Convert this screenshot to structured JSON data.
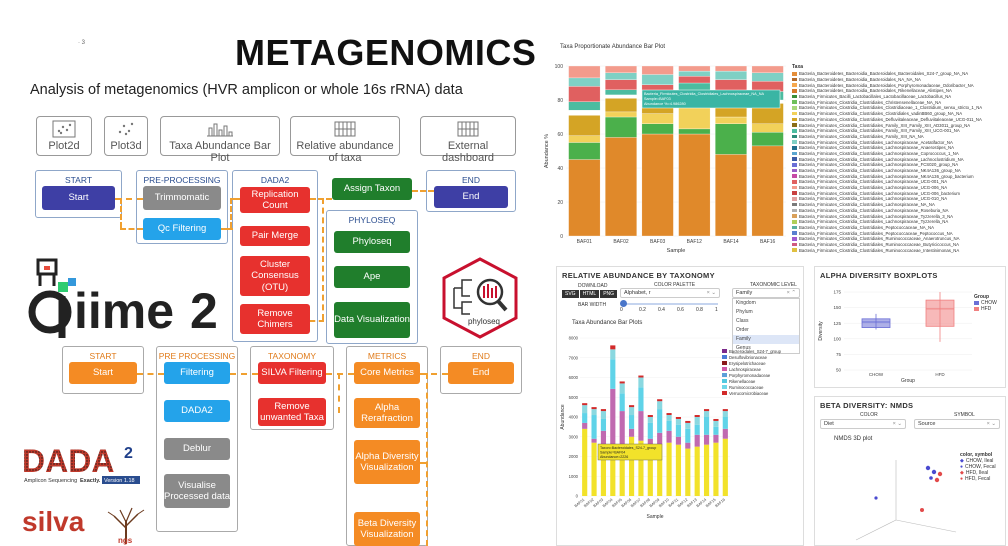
{
  "header": {
    "title": "METAGENOMICS",
    "subtitle": "Analysis of metagenomics (HVR amplicon or whole 16s rRNA) data",
    "version_mark": "· 3"
  },
  "features": [
    {
      "label": "Plot2d",
      "icon": "scatter-plot-icon"
    },
    {
      "label": "Plot3d",
      "icon": "scatter-3d-icon"
    },
    {
      "label": "Taxa Abundance Bar Plot",
      "icon": "bar-chart-icon"
    },
    {
      "label": "Relative abundance of taxa",
      "icon": "stacked-bar-icon"
    },
    {
      "label": "External dashboard",
      "icon": "dashboard-icon"
    }
  ],
  "qiime_pipeline": {
    "start": {
      "header": "START",
      "node": "Start"
    },
    "preprocessing": {
      "header": "PRE-PROCESSING",
      "nodes": [
        "Trimmomatic",
        "Qc Filtering"
      ]
    },
    "dada2": {
      "header": "DADA2",
      "nodes": [
        "Replication Count",
        "Pair Merge",
        "Cluster Consensus (OTU)",
        "Remove Chimers"
      ]
    },
    "assign": {
      "node": "Assign Taxon"
    },
    "phyloseq": {
      "header": "PHYLOSEQ",
      "nodes": [
        "Phyloseq",
        "Ape",
        "Data Visualization"
      ]
    },
    "end": {
      "header": "END",
      "node": "End"
    }
  },
  "dada2_pipeline": {
    "start": {
      "header": "START",
      "node": "Start"
    },
    "preprocessing": {
      "header": "PRE PROCESSING",
      "nodes": [
        "Filtering",
        "DADA2",
        "Deblur",
        "Visualise Processed data"
      ]
    },
    "taxonomy": {
      "header": "TAXONOMY",
      "nodes": [
        "SILVA Filtering",
        "Remove unwanted Taxa"
      ]
    },
    "metrics": {
      "header": "METRICS",
      "nodes": [
        "Core Metrics",
        "Alpha Rerafraction",
        "Alpha Diversity Visualization",
        "Beta Diversity Visualization"
      ]
    },
    "end": {
      "header": "END",
      "node": "End"
    }
  },
  "logos": {
    "qiime": "qiime2",
    "phyloseq": "phyloseq",
    "dada2_word": "DADA",
    "dada2_sup": "2",
    "dada2_tagline": "Amplicon Sequencing",
    "dada2_exactly": "Exactly.",
    "dada2_version": "Version 1.18",
    "silva": "silva",
    "silva_suffix": "ngs"
  },
  "taxa_panel": {
    "title": "Taxa Proportionate Abundance Bar Plot",
    "ylabel": "Abundance %",
    "xlabel": "Sample",
    "legend_title": "Taxa",
    "tooltip": [
      "Bacteria_Firmicutes_Clostridia_Clostridiales_Lachnospiraceae_NA_NA",
      "Sample=BAF03",
      "Abundance %=4.986280"
    ],
    "legend": [
      "Bacteria_Bacteroidetes_Bacteroidia_Bacteroidales_Bacteroidales_S24-7_group_NA_NA",
      "Bacteria_Bacteroidetes_Bacteroidia_Bacteroidales_NA_NA_NA",
      "Bacteria_Bacteroidetes_Bacteroidia_Bacteroidales_Porphyromonadaceae_Odoribacter_NA",
      "Bacteria_Bacteroidetes_Bacteroidia_Bacteroidales_Rikenellaceae_Alistipes_NA",
      "Bacteria_Firmicutes_Bacilli_Lactobacillales_Lactobacillaceae_Lactobacillus_NA",
      "Bacteria_Firmicutes_Clostridia_Clostridiales_Christensenellaceae_NA_NA",
      "Bacteria_Firmicutes_Clostridia_Clostridiales_Clostridiaceae_1_Clostridium_sensu_stricto_1_NA",
      "Bacteria_Firmicutes_Clostridia_Clostridiales_Clostridiales_vadinBB60_group_NA_NA",
      "Bacteria_Firmicutes_Clostridia_Clostridiales_Defluviitaleaceae_Defluviitaleaceae_UCG-011_NA",
      "Bacteria_Firmicutes_Clostridia_Clostridiales_Family_XIII_Family_XIII_AD3011_group_NA",
      "Bacteria_Firmicutes_Clostridia_Clostridiales_Family_XIII_Family_XIII_UCG-001_NA",
      "Bacteria_Firmicutes_Clostridia_Clostridiales_Family_XIII_NA_NA",
      "Bacteria_Firmicutes_Clostridia_Clostridiales_Lachnospiraceae_Acetatifactor_NA",
      "Bacteria_Firmicutes_Clostridia_Clostridiales_Lachnospiraceae_Anaerostipes_NA",
      "Bacteria_Firmicutes_Clostridia_Clostridiales_Lachnospiraceae_Coprococcus_1_NA",
      "Bacteria_Firmicutes_Clostridia_Clostridiales_Lachnospiraceae_Lachnoclostridium_NA",
      "Bacteria_Firmicutes_Clostridia_Clostridiales_Lachnospiraceae_FCS020_group_NA",
      "Bacteria_Firmicutes_Clostridia_Clostridiales_Lachnospiraceae_NK4A136_group_NA",
      "Bacteria_Firmicutes_Clostridia_Clostridiales_Lachnospiraceae_NK4A136_group_bacterium",
      "Bacteria_Firmicutes_Clostridia_Clostridiales_Lachnospiraceae_UCG-001_NA",
      "Bacteria_Firmicutes_Clostridia_Clostridiales_Lachnospiraceae_UCG-006_NA",
      "Bacteria_Firmicutes_Clostridia_Clostridiales_Lachnospiraceae_UCG-006_bacterium",
      "Bacteria_Firmicutes_Clostridia_Clostridiales_Lachnospiraceae_UCG-010_NA",
      "Bacteria_Firmicutes_Clostridia_Clostridiales_Lachnospiraceae_NA_NA",
      "Bacteria_Firmicutes_Clostridia_Clostridiales_Lachnospiraceae_Roseburia_NA",
      "Bacteria_Firmicutes_Clostridia_Clostridiales_Lachnospiraceae_Tyzzerella_3_NA",
      "Bacteria_Firmicutes_Clostridia_Clostridiales_Lachnospiraceae_Tyzzerella_NA",
      "Bacteria_Firmicutes_Clostridia_Clostridiales_Peptococcaceae_NA_NA",
      "Bacteria_Firmicutes_Clostridia_Clostridiales_Peptococcaceae_Peptococcus_NA",
      "Bacteria_Firmicutes_Clostridia_Clostridiales_Ruminococcaceae_Anaerotruncus_NA",
      "Bacteria_Firmicutes_Clostridia_Clostridiales_Ruminococcaceae_Butyricicoccus_NA",
      "Bacteria_Firmicutes_Clostridia_Clostridiales_Ruminococcaceae_Intestinimonas_NA"
    ]
  },
  "relative_panel": {
    "title": "RELATIVE ABUNDANCE BY TAXONOMY",
    "download_label": "DOWNLOAD",
    "download_buttons": [
      "SVG",
      "HTML",
      "PNG"
    ],
    "color_palette_label": "COLOR PALETTE",
    "color_palette_value": "Alphabet, r",
    "bar_width_label": "BAR WIDTH",
    "slider_ticks": [
      "0",
      "0.2",
      "0.4",
      "0.6",
      "0.8",
      "1"
    ],
    "taxonomy_label": "TAXONOMIC LEVEL",
    "taxonomy_value": "Family",
    "taxonomy_options": [
      "Kingdom",
      "Phylum",
      "Class",
      "Order",
      "Family",
      "Genus"
    ],
    "taxonomy_selected": "Family",
    "plot_title": "Taxa Abundance Bar Plots",
    "ylabel": "Abundance",
    "xlabel": "Sample",
    "tooltip": [
      "Taxon=Bacteroidales_S24-7_group",
      "Sample=BAF04",
      "Abundance=2226"
    ],
    "legend": [
      {
        "name": "Bacteroidales_S24-7_group",
        "color": "#7b2a8b"
      },
      {
        "name": "Desulfovibrionaceae",
        "color": "#4b7bd6"
      },
      {
        "name": "Erysipelotrichaceae",
        "color": "#8a1a1a"
      },
      {
        "name": "Lachnospiraceae",
        "color": "#d05aa8"
      },
      {
        "name": "Porphyromonadaceae",
        "color": "#5c9fd9"
      },
      {
        "name": "Rikenellaceae",
        "color": "#52c9e0"
      },
      {
        "name": "Ruminococcaceae",
        "color": "#6fd7e8"
      },
      {
        "name": "Verrucomicrobiaceae",
        "color": "#d22a2a"
      }
    ],
    "samples": [
      "BAF01",
      "BAF02",
      "BAF03",
      "BAF04",
      "BAF05",
      "BAF06",
      "BAF07",
      "BAF08",
      "BAF09",
      "BAF10",
      "BAF11",
      "BAF12",
      "BAF13",
      "BAF14",
      "BAF15",
      "BAF16"
    ],
    "y_ticks": [
      "0",
      "1000",
      "2000",
      "3000",
      "4000",
      "5000",
      "6000",
      "7000",
      "8000"
    ]
  },
  "alpha_panel": {
    "title": "ALPHA DIVERSITY BOXPLOTS",
    "ylabel": "Diversity",
    "xlabel": "Group",
    "legend_title": "Group",
    "groups": [
      "CHOW",
      "HFD"
    ],
    "y_ticks": [
      "50",
      "75",
      "100",
      "125",
      "150",
      "175"
    ],
    "colors": {
      "CHOW": "#6b6fd6",
      "HFD": "#f08080"
    }
  },
  "beta_panel": {
    "title": "BETA DIVERSITY: NMDS",
    "color_label": "COLOR",
    "color_value": "Diet",
    "symbol_label": "SYMBOL",
    "symbol_value": "Source",
    "plot_title": "NMDS 3D plot",
    "legend_title": "color, symbol",
    "legend": [
      "CHOW, Ileal",
      "CHOW, Fecal",
      "HFD, Ileal",
      "HFD, Fecal"
    ]
  },
  "chart_data": [
    {
      "type": "bar",
      "title": "Taxa Proportionate Abundance Bar Plot",
      "xlabel": "Sample",
      "ylabel": "Abundance %",
      "categories": [
        "BAF01",
        "BAF02",
        "BAF03",
        "BAF12",
        "BAF14",
        "BAF16"
      ],
      "ylim": [
        0,
        100
      ],
      "y_ticks": [
        0,
        20,
        40,
        60,
        80,
        100
      ],
      "stacked": true,
      "series": [
        {
          "color": "#e0892a",
          "values": [
            45,
            58,
            60,
            60,
            48,
            53
          ]
        },
        {
          "color": "#4bb04b",
          "values": [
            10,
            12,
            6,
            3,
            18,
            8
          ]
        },
        {
          "color": "#f2d15a",
          "values": [
            4,
            3,
            6,
            14,
            4,
            5
          ]
        },
        {
          "color": "#d4a425",
          "values": [
            12,
            8,
            6,
            5,
            8,
            12
          ]
        },
        {
          "color": "#ffffff",
          "values": [
            3,
            2,
            2,
            2,
            2,
            2
          ]
        },
        {
          "color": "#4cbca0",
          "values": [
            5,
            3,
            4,
            6,
            4,
            5
          ]
        },
        {
          "color": "#e06060",
          "values": [
            9,
            6,
            5,
            4,
            8,
            6
          ]
        },
        {
          "color": "#7fd0c4",
          "values": [
            5,
            4,
            6,
            3,
            5,
            5
          ]
        },
        {
          "color": "#f39b8c",
          "values": [
            7,
            4,
            5,
            3,
            3,
            4
          ]
        }
      ]
    },
    {
      "type": "bar",
      "title": "Taxa Abundance Bar Plots",
      "xlabel": "Sample",
      "ylabel": "Abundance",
      "categories": [
        "BAF01",
        "BAF02",
        "BAF03",
        "BAF04",
        "BAF05",
        "BAF06",
        "BAF07",
        "BAF08",
        "BAF09",
        "BAF10",
        "BAF11",
        "BAF12",
        "BAF13",
        "BAF14",
        "BAF15",
        "BAF16"
      ],
      "ylim": [
        0,
        8000
      ],
      "stacked": true,
      "series": [
        {
          "name": "Bacteroidales_S24-7_group",
          "values": [
            3400,
            2700,
            2600,
            2226,
            2500,
            3000,
            2800,
            2400,
            2600,
            2700,
            2600,
            2400,
            2500,
            2600,
            2700,
            2900
          ]
        },
        {
          "name": "Lachnospiraceae",
          "values": [
            300,
            200,
            700,
            3200,
            1800,
            400,
            1500,
            500,
            600,
            600,
            400,
            300,
            600,
            500,
            400,
            500
          ]
        },
        {
          "name": "Rikenellaceae",
          "values": [
            500,
            1200,
            600,
            1500,
            900,
            700,
            1200,
            800,
            1200,
            500,
            600,
            700,
            500,
            900,
            400,
            600
          ]
        },
        {
          "name": "Ruminococcaceae",
          "values": [
            400,
            300,
            400,
            500,
            500,
            400,
            500,
            300,
            400,
            300,
            300,
            300,
            400,
            300,
            300,
            300
          ]
        },
        {
          "name": "Verrucomicrobiaceae",
          "values": [
            100,
            100,
            100,
            200,
            100,
            100,
            100,
            100,
            100,
            100,
            100,
            100,
            100,
            100,
            100,
            100
          ]
        }
      ]
    },
    {
      "type": "box",
      "title": "ALPHA DIVERSITY BOXPLOTS",
      "xlabel": "Group",
      "ylabel": "Diversity",
      "categories": [
        "CHOW",
        "HFD"
      ],
      "ylim": [
        50,
        175
      ],
      "series": [
        {
          "name": "CHOW",
          "min": 115,
          "q1": 118,
          "median": 127,
          "q3": 132,
          "max": 140
        },
        {
          "name": "HFD",
          "min": 95,
          "q1": 120,
          "median": 148,
          "q3": 162,
          "max": 182
        }
      ]
    }
  ]
}
